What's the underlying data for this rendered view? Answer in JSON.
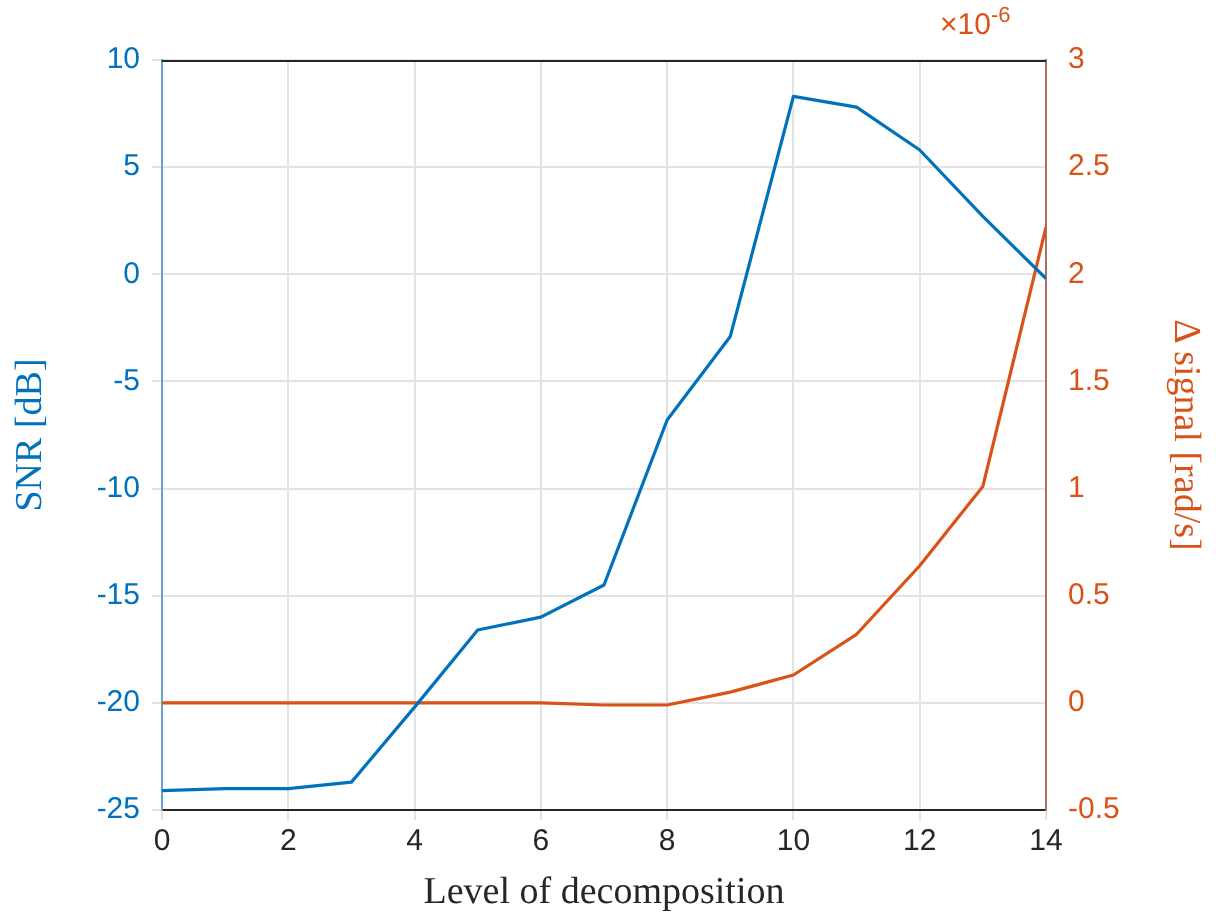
{
  "chart_data": {
    "type": "line",
    "xlabel": "Level of decomposition",
    "ylabel": "SNR [dB]",
    "y2label": "Δ signal [rad/s]",
    "x": [
      0,
      1,
      2,
      3,
      4,
      5,
      6,
      7,
      8,
      9,
      10,
      11,
      12,
      13,
      14
    ],
    "series": [
      {
        "color": "#0072bd",
        "values": [
          -24.1,
          -24.0,
          -24.0,
          -23.7,
          -20.2,
          -16.6,
          -16.0,
          -14.5,
          -6.8,
          -2.9,
          8.3,
          7.8,
          5.8,
          2.7,
          -0.2
        ]
      },
      {
        "color": "#d95319",
        "axis": "y2",
        "values": [
          0,
          0,
          0,
          0,
          0,
          0,
          0,
          -0.01,
          -0.01,
          0.05,
          0.13,
          0.32,
          0.64,
          1.01,
          2.22
        ]
      }
    ],
    "xlim": [
      0,
      14
    ],
    "xticks": [
      0,
      2,
      4,
      6,
      8,
      10,
      12,
      14
    ],
    "ylim": [
      -25,
      10
    ],
    "yticks": [
      -25,
      -20,
      -15,
      -10,
      -5,
      0,
      5,
      10
    ],
    "y2lim": [
      -0.5,
      3
    ],
    "y2ticks": [
      -0.5,
      0,
      0.5,
      1,
      1.5,
      2,
      2.5,
      3
    ],
    "annotations": [
      "×10$^{-6}$"
    ],
    "grid": true,
    "legend": false,
    "marker": "none",
    "line_style": "solid"
  }
}
